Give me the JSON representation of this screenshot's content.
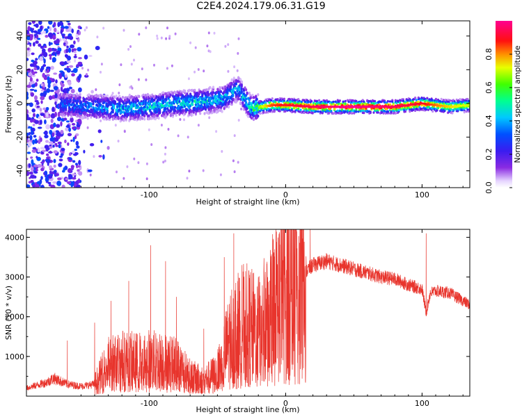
{
  "title": "C2E4.2024.179.06.31.G19",
  "colors": {
    "snr_line": "#e8342c",
    "frame": "#000000",
    "background": "#ffffff"
  },
  "chart_data": [
    {
      "type": "heatmap",
      "xlabel": "Height of straight line (km)",
      "ylabel": "Frequency (Hz)",
      "xlim": [
        -190,
        135
      ],
      "ylim": [
        -50,
        49
      ],
      "xticks": [
        -100,
        0,
        100
      ],
      "yticks": [
        -40,
        -20,
        0,
        20,
        40
      ],
      "colorbar": {
        "label": "Normalized spectral amplitude",
        "range": [
          0,
          1
        ],
        "ticks": [
          0.0,
          0.2,
          0.4,
          0.6,
          0.8
        ],
        "colormap": "rainbow (purple-blue-cyan-green-yellow-red-magenta)"
      },
      "ridge": [
        {
          "x": -160,
          "y": -1,
          "amp": 0.35
        },
        {
          "x": -140,
          "y": -2,
          "amp": 0.4
        },
        {
          "x": -120,
          "y": -3,
          "amp": 0.45
        },
        {
          "x": -100,
          "y": -2,
          "amp": 0.5
        },
        {
          "x": -80,
          "y": 0,
          "amp": 0.5
        },
        {
          "x": -60,
          "y": 1,
          "amp": 0.5
        },
        {
          "x": -45,
          "y": 3,
          "amp": 0.45
        },
        {
          "x": -35,
          "y": 9,
          "amp": 0.45
        },
        {
          "x": -25,
          "y": -3,
          "amp": 0.55
        },
        {
          "x": -10,
          "y": -1,
          "amp": 0.85
        },
        {
          "x": 0,
          "y": -1,
          "amp": 0.9
        },
        {
          "x": 20,
          "y": -2,
          "amp": 0.95
        },
        {
          "x": 50,
          "y": -2,
          "amp": 1.0
        },
        {
          "x": 80,
          "y": -2,
          "amp": 0.95
        },
        {
          "x": 100,
          "y": 0,
          "amp": 0.9
        },
        {
          "x": 120,
          "y": -2,
          "amp": 0.75
        },
        {
          "x": 135,
          "y": -1,
          "amp": 0.7
        }
      ],
      "noise_region_x": [
        -190,
        -150
      ]
    },
    {
      "type": "line",
      "xlabel": "Height of straight line (km)",
      "ylabel": "SNR (10 * v/v)",
      "xlim": [
        -190,
        135
      ],
      "ylim": [
        0,
        4200
      ],
      "xticks": [
        -100,
        0,
        100
      ],
      "yticks": [
        1000,
        2000,
        3000,
        4000
      ],
      "series": [
        {
          "x": [
            -190,
            -175,
            -170,
            -160,
            -150,
            -140,
            -130,
            -120,
            -110,
            -100,
            -90,
            -80,
            -70,
            -60,
            -50,
            -40,
            -30,
            -20,
            -10,
            0,
            10,
            20,
            30,
            40,
            50,
            60,
            70,
            80,
            90,
            100,
            103,
            106,
            110,
            120,
            130,
            135
          ],
          "y": [
            200,
            350,
            450,
            300,
            250,
            300,
            800,
            900,
            850,
            900,
            850,
            800,
            500,
            400,
            600,
            1500,
            1800,
            1600,
            2200,
            2700,
            3000,
            3300,
            3400,
            3300,
            3200,
            3100,
            3000,
            2950,
            2800,
            2700,
            2100,
            2600,
            2650,
            2600,
            2400,
            2300
          ],
          "spike_x": [
            -160,
            -140,
            -128,
            -115,
            -99,
            -88,
            -80,
            -60,
            -45,
            -38,
            -32,
            -20,
            -8,
            12,
            18,
            103
          ],
          "spike_y": [
            1400,
            1850,
            2400,
            2900,
            3800,
            3400,
            2500,
            1700,
            3500,
            4100,
            3300,
            3000,
            3700,
            4150,
            4200,
            4100
          ]
        }
      ]
    }
  ]
}
